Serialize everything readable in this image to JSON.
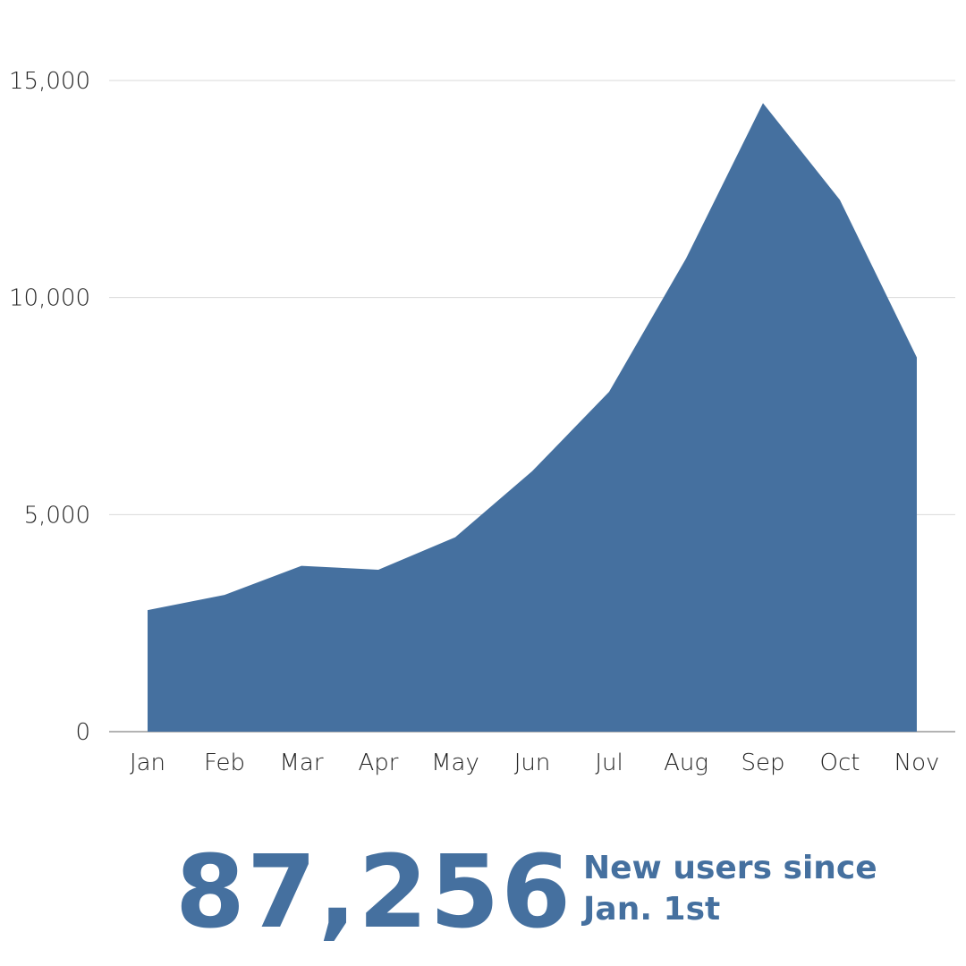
{
  "chart_data": {
    "type": "area",
    "categories": [
      "Jan",
      "Feb",
      "Mar",
      "Apr",
      "May",
      "Jun",
      "Jul",
      "Aug",
      "Sep",
      "Oct",
      "Nov"
    ],
    "series": [
      {
        "values": [
          2800,
          3150,
          3820,
          3730,
          4480,
          6000,
          7830,
          10900,
          14480,
          12250,
          8620
        ]
      }
    ],
    "ylim": [
      0,
      15000
    ],
    "yticks": [
      0,
      5000,
      10000,
      15000
    ],
    "ytick_labels": [
      "0",
      "5,000",
      "10,000",
      "15,000"
    ],
    "grid": true,
    "fill_color": "#45709f"
  },
  "stat": {
    "value": "87,256",
    "caption_line1": "New users since",
    "caption_line2": "Jan. 1st",
    "color": "#45709f"
  }
}
